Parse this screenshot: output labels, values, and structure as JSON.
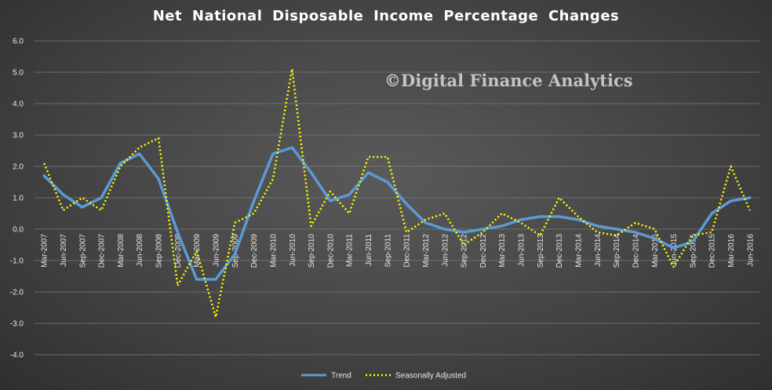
{
  "title": "Net National Disposable Income Percentage Changes",
  "watermark": "©Digital Finance Analytics",
  "colors": {
    "trend": "#5b9bd5",
    "seasonal": "#ffff00",
    "background": "#444444",
    "grid": "#7a7a7a",
    "text": "#e6e6e6"
  },
  "chart_data": {
    "type": "line",
    "title": "Net National Disposable Income Percentage Changes",
    "xlabel": "",
    "ylabel": "",
    "ylim": [
      -4.0,
      6.0
    ],
    "y_ticks": [
      "6.0",
      "5.0",
      "4.0",
      "3.0",
      "2.0",
      "1.0",
      "0.0",
      "-1.0",
      "-2.0",
      "-3.0",
      "-4.0"
    ],
    "grid": true,
    "legend": "bottom-center",
    "categories": [
      "Mar-2007",
      "Jun-2007",
      "Sep-2007",
      "Dec-2007",
      "Mar-2008",
      "Jun-2008",
      "Sep-2008",
      "Dec-2008",
      "Mar-2009",
      "Jun-2009",
      "Sep-2009",
      "Dec-2009",
      "Mar-2010",
      "Jun-2010",
      "Sep-2010",
      "Dec-2010",
      "Mar-2011",
      "Jun-2011",
      "Sep-2011",
      "Dec-2011",
      "Mar-2012",
      "Jun-2012",
      "Sep-2012",
      "Dec-2012",
      "Mar-2013",
      "Jun-2013",
      "Sep-2013",
      "Dec-2013",
      "Mar-2014",
      "Jun-2014",
      "Sep-2014",
      "Dec-2014",
      "Mar-2015",
      "Jun-2015",
      "Sep-2015",
      "Dec-2015",
      "Mar-2016",
      "Jun-2016"
    ],
    "series": [
      {
        "name": "Trend",
        "values": [
          1.7,
          1.1,
          0.7,
          1.0,
          2.1,
          2.4,
          1.6,
          -0.1,
          -1.6,
          -1.6,
          -0.8,
          0.9,
          2.4,
          2.6,
          1.8,
          0.9,
          1.1,
          1.8,
          1.5,
          0.8,
          0.2,
          0.0,
          -0.1,
          0.0,
          0.1,
          0.3,
          0.4,
          0.4,
          0.3,
          0.1,
          0.0,
          -0.1,
          -0.3,
          -0.6,
          -0.4,
          0.5,
          0.9,
          1.0
        ]
      },
      {
        "name": "Seasonally Adjusted",
        "values": [
          2.1,
          0.6,
          1.0,
          0.6,
          2.0,
          2.6,
          2.9,
          -1.8,
          -0.7,
          -2.8,
          0.2,
          0.5,
          1.6,
          5.1,
          0.1,
          1.2,
          0.5,
          2.3,
          2.3,
          -0.1,
          0.3,
          0.5,
          -0.5,
          -0.1,
          0.5,
          0.2,
          -0.2,
          1.0,
          0.4,
          -0.1,
          -0.2,
          0.2,
          0.0,
          -1.2,
          -0.2,
          -0.1,
          2.0,
          0.6
        ]
      }
    ]
  }
}
